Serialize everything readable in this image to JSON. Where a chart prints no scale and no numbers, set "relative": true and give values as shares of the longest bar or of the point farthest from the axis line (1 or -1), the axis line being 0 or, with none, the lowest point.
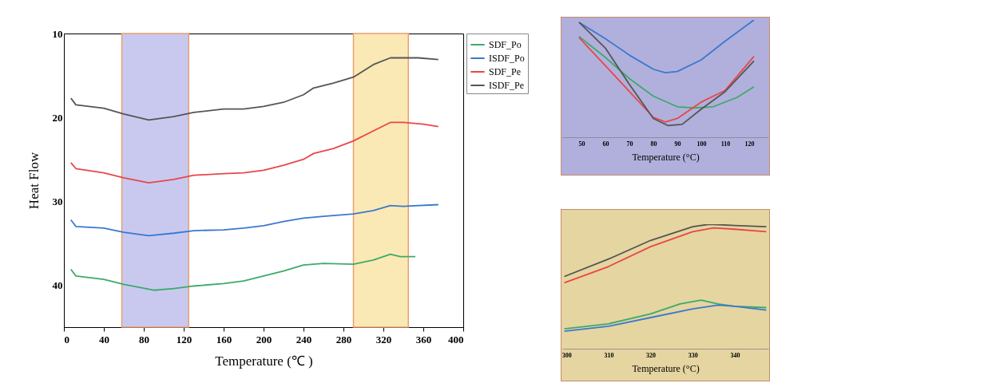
{
  "chart_data": [
    {
      "type": "line",
      "xlabel": "Temperature (℃ )",
      "ylabel": "Heat Flow",
      "xlim": [
        0,
        400
      ],
      "xticks": [
        0,
        40,
        80,
        120,
        160,
        200,
        240,
        280,
        320,
        360,
        400
      ],
      "ylim": [
        45,
        10
      ],
      "yticks": [
        10,
        20,
        30,
        40
      ],
      "grid": false,
      "legend": "right",
      "bands": [
        {
          "axis": "x",
          "from": 58,
          "to": 125,
          "color": "#c9c9f0"
        },
        {
          "axis": "x",
          "from": 290,
          "to": 345,
          "color": "#fbe9b5"
        }
      ],
      "series": [
        {
          "name": "SDF_Po",
          "color": "#3daa6a",
          "x": [
            7,
            12,
            40,
            60,
            90,
            110,
            130,
            160,
            180,
            200,
            220,
            240,
            260,
            290,
            310,
            327,
            337,
            352
          ],
          "values": [
            38.1,
            38.9,
            39.3,
            39.9,
            40.6,
            40.4,
            40.1,
            39.8,
            39.5,
            38.9,
            38.3,
            37.6,
            37.4,
            37.5,
            37.0,
            36.3,
            36.6,
            36.6
          ]
        },
        {
          "name": "ISDF_Po",
          "color": "#3a78d0",
          "x": [
            7,
            12,
            40,
            60,
            85,
            110,
            130,
            160,
            180,
            200,
            220,
            240,
            260,
            290,
            310,
            327,
            340,
            375
          ],
          "values": [
            32.2,
            33.0,
            33.2,
            33.7,
            34.1,
            33.8,
            33.5,
            33.4,
            33.2,
            32.9,
            32.4,
            32.0,
            31.8,
            31.5,
            31.1,
            30.5,
            30.6,
            30.4
          ]
        },
        {
          "name": "SDF_Pe",
          "color": "#e8474a",
          "x": [
            7,
            12,
            40,
            60,
            85,
            110,
            130,
            160,
            180,
            200,
            220,
            240,
            250,
            270,
            290,
            310,
            327,
            340,
            360,
            375
          ],
          "values": [
            25.4,
            26.1,
            26.6,
            27.2,
            27.8,
            27.4,
            26.9,
            26.7,
            26.6,
            26.3,
            25.7,
            25.0,
            24.3,
            23.7,
            22.8,
            21.6,
            20.6,
            20.6,
            20.8,
            21.1
          ]
        },
        {
          "name": "ISDF_Pe",
          "color": "#555555",
          "x": [
            7,
            12,
            40,
            60,
            85,
            110,
            130,
            160,
            180,
            200,
            220,
            240,
            250,
            270,
            290,
            310,
            327,
            340,
            355,
            375
          ],
          "values": [
            17.7,
            18.5,
            18.9,
            19.6,
            20.3,
            19.9,
            19.4,
            19.0,
            19.0,
            18.7,
            18.2,
            17.3,
            16.5,
            15.9,
            15.2,
            13.7,
            12.9,
            12.9,
            12.9,
            13.1
          ]
        }
      ]
    },
    {
      "type": "line",
      "xlabel": "Temperature (°C)",
      "xlim": [
        42,
        128
      ],
      "xticks": [
        50,
        60,
        70,
        80,
        90,
        100,
        110,
        120
      ],
      "relative": true,
      "tick_labels": "x",
      "grid": false,
      "bands": [
        {
          "axis": "x",
          "from": 42,
          "to": 128,
          "color": "#b1b0dc"
        }
      ],
      "series": [
        {
          "color": "#3daa6a",
          "x": [
            49,
            60,
            70,
            80,
            90,
            97,
            105,
            115,
            122
          ],
          "values": [
            0.86,
            0.68,
            0.5,
            0.35,
            0.26,
            0.25,
            0.26,
            0.34,
            0.43
          ]
        },
        {
          "color": "#3a78d0",
          "x": [
            49,
            60,
            70,
            80,
            85,
            90,
            100,
            110,
            122
          ],
          "values": [
            0.98,
            0.84,
            0.7,
            0.58,
            0.55,
            0.56,
            0.66,
            0.82,
            1
          ]
        },
        {
          "color": "#e8474a",
          "x": [
            49,
            60,
            70,
            80,
            85,
            90,
            100,
            110,
            122
          ],
          "values": [
            0.85,
            0.61,
            0.39,
            0.17,
            0.13,
            0.16,
            0.3,
            0.4,
            0.69
          ]
        },
        {
          "color": "#555555",
          "x": [
            49,
            60,
            70,
            80,
            86,
            92,
            100,
            110,
            122
          ],
          "values": [
            0.98,
            0.76,
            0.45,
            0.16,
            0.1,
            0.11,
            0.24,
            0.39,
            0.65
          ]
        }
      ]
    },
    {
      "type": "line",
      "xlabel": "Temperature (°C)",
      "xlim": [
        299,
        348
      ],
      "xticks": [
        300,
        310,
        320,
        330,
        340
      ],
      "relative": true,
      "tick_labels": "x",
      "grid": false,
      "bands": [
        {
          "axis": "x",
          "from": 299,
          "to": 348,
          "color": "#e5d5a0"
        }
      ],
      "series": [
        {
          "color": "#3daa6a",
          "x": [
            299.5,
            310,
            320,
            327,
            332,
            336,
            340,
            347.5
          ],
          "values": [
            0.16,
            0.2,
            0.28,
            0.36,
            0.39,
            0.36,
            0.34,
            0.33
          ]
        },
        {
          "color": "#3a78d0",
          "x": [
            299.5,
            310,
            320,
            330,
            336,
            340,
            347.5
          ],
          "values": [
            0.14,
            0.18,
            0.25,
            0.32,
            0.35,
            0.34,
            0.31
          ]
        },
        {
          "color": "#e8474a",
          "x": [
            299.5,
            310,
            320,
            330,
            335,
            340,
            347.5
          ],
          "values": [
            0.53,
            0.66,
            0.82,
            0.94,
            0.97,
            0.96,
            0.94
          ]
        },
        {
          "color": "#555555",
          "x": [
            299.5,
            310,
            320,
            330,
            334,
            340,
            347.5
          ],
          "values": [
            0.58,
            0.72,
            0.87,
            0.98,
            1,
            0.99,
            0.98
          ]
        }
      ]
    }
  ]
}
